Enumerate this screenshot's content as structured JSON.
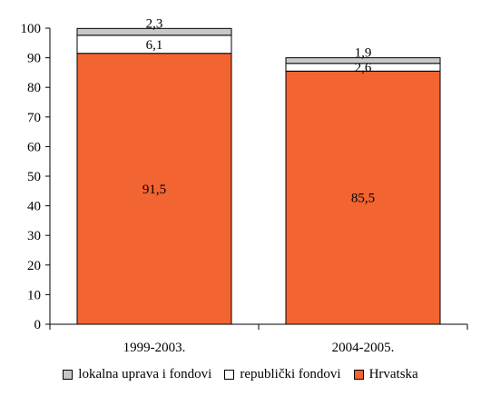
{
  "chart_data": {
    "type": "bar",
    "stacked": true,
    "categories": [
      "1999-2003.",
      "2004-2005."
    ],
    "series": [
      {
        "name": "Hrvatska",
        "values": [
          91.5,
          85.5
        ],
        "labels": [
          "91,5",
          "85,5"
        ],
        "color": "#f26432"
      },
      {
        "name": "republički fondovi",
        "values": [
          6.1,
          2.6
        ],
        "labels": [
          "6,1",
          "2,6"
        ],
        "color": "#ffffff"
      },
      {
        "name": "lokalna uprava i fondovi",
        "values": [
          2.3,
          1.9
        ],
        "labels": [
          "2,3",
          "1,9"
        ],
        "color": "#c8c8c8"
      }
    ],
    "ylim": [
      0,
      100
    ],
    "yticks": [
      0,
      10,
      20,
      30,
      40,
      50,
      60,
      70,
      80,
      90,
      100
    ],
    "grid": false,
    "legend_position": "bottom",
    "legend_order": [
      "lokalna uprava i fondovi",
      "republički fondovi",
      "Hrvatska"
    ]
  }
}
